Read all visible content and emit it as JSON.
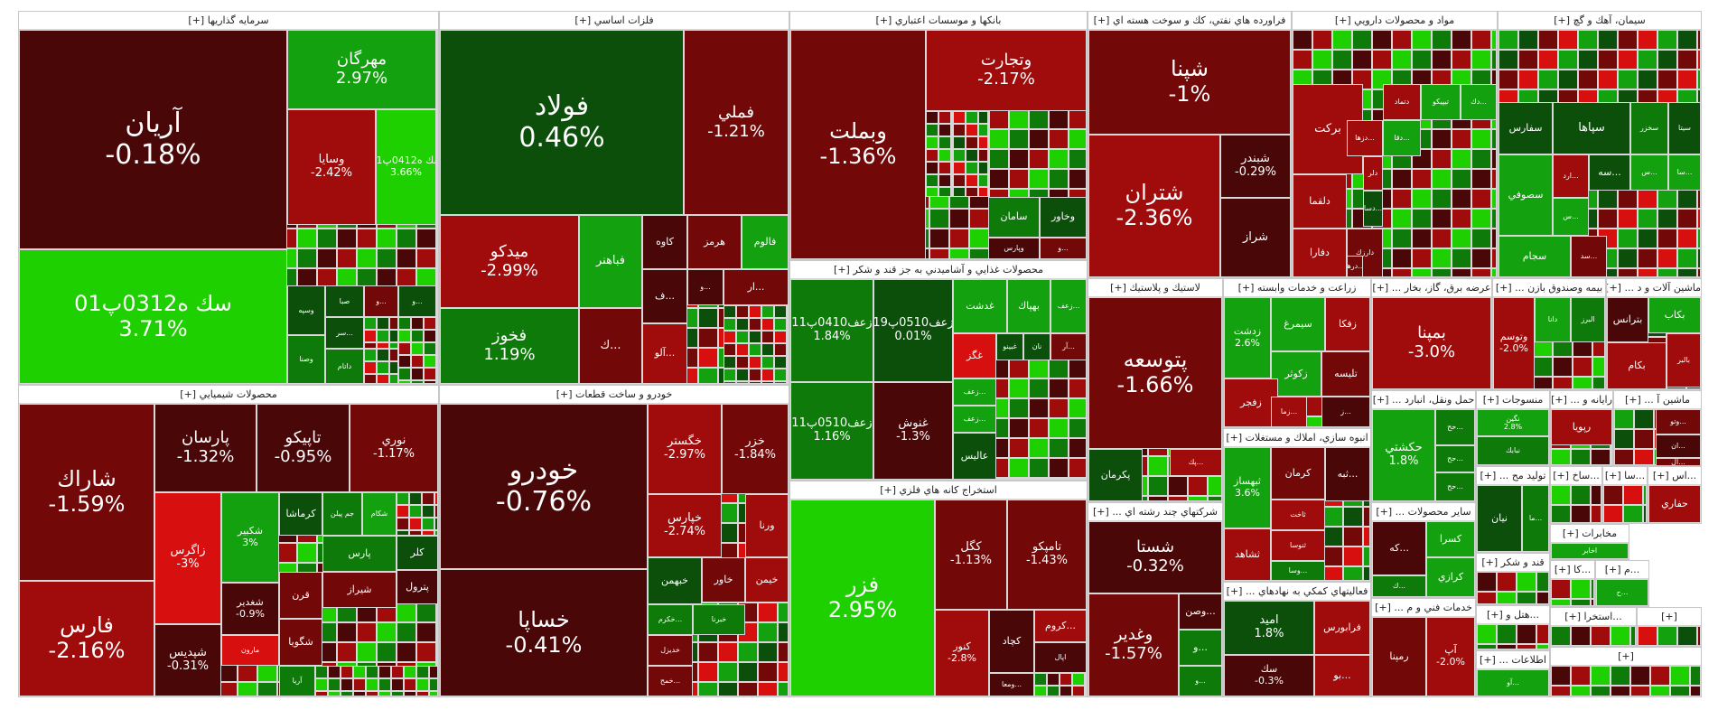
{
  "colors": {
    "pos_hi": "#1fd000",
    "pos_mid": "#14a10f",
    "pos_lo": "#0d7a0a",
    "pos_dk": "#0b4f0b",
    "neg_lo": "#4a0707",
    "neg_mid": "#730808",
    "neg_hi": "#a00b0b",
    "neg_max": "#d80f0f"
  },
  "sectors": [
    {
      "title": "سرمايه گذاريها",
      "plus": "[+]",
      "tiles": [
        {
          "symbol": "آريان",
          "change": "-0.18%"
        },
        {
          "symbol": "سك ه0312پ01",
          "change": "3.71%"
        },
        {
          "symbol": "مهرگان",
          "change": "2.97%"
        },
        {
          "symbol": "وسايا",
          "change": "-2.42%"
        },
        {
          "symbol": "سك ه0412پ01",
          "change": "3.66%"
        },
        {
          "symbol": "وسپه",
          "change": ""
        },
        {
          "symbol": "صبا",
          "change": ""
        },
        {
          "symbol": "وصنا",
          "change": ""
        },
        {
          "symbol": "داتام",
          "change": ""
        },
        {
          "symbol": "...سر",
          "change": ""
        },
        {
          "symbol": "...و",
          "change": ""
        },
        {
          "symbol": "...و",
          "change": ""
        }
      ]
    },
    {
      "title": "فلزات اساسي",
      "plus": "[+]",
      "tiles": [
        {
          "symbol": "فولاد",
          "change": "0.46%"
        },
        {
          "symbol": "فملي",
          "change": "-1.21%"
        },
        {
          "symbol": "ميدكو",
          "change": "-2.99%"
        },
        {
          "symbol": "فخوز",
          "change": "1.19%"
        },
        {
          "symbol": "فباهنر",
          "change": ""
        },
        {
          "symbol": "كاوه",
          "change": ""
        },
        {
          "symbol": "هرمز",
          "change": ""
        },
        {
          "symbol": "فالوم",
          "change": ""
        },
        {
          "symbol": "...آلو",
          "change": ""
        },
        {
          "symbol": "...ف",
          "change": ""
        },
        {
          "symbol": "...ك",
          "change": ""
        },
        {
          "symbol": "...و",
          "change": ""
        },
        {
          "symbol": "...ار",
          "change": ""
        }
      ]
    },
    {
      "title": "بانكها و موسسات اعتباري",
      "plus": "[+]",
      "tiles": [
        {
          "symbol": "وبملت",
          "change": "-1.36%"
        },
        {
          "symbol": "وتجارت",
          "change": "-2.17%"
        },
        {
          "symbol": "سامان",
          "change": ""
        },
        {
          "symbol": "وخاور",
          "change": ""
        },
        {
          "symbol": "وپارس",
          "change": ""
        },
        {
          "symbol": "...و",
          "change": ""
        }
      ]
    },
    {
      "title": "فراورده هاي نفتي، كك و سوخت هسته اي",
      "plus": "[+]",
      "tiles": [
        {
          "symbol": "شپنا",
          "change": "-1%"
        },
        {
          "symbol": "شتران",
          "change": "-2.36%"
        },
        {
          "symbol": "شراز",
          "change": ""
        },
        {
          "symbol": "شبندر",
          "change": "-0.29%"
        }
      ]
    },
    {
      "title": "مواد و محصولات دارويي",
      "plus": "[+]",
      "tiles": [
        {
          "symbol": "بركت",
          "change": ""
        },
        {
          "symbol": "تيپيكو",
          "change": ""
        },
        {
          "symbol": "دتماد",
          "change": ""
        },
        {
          "symbol": "...دزها",
          "change": ""
        },
        {
          "symbol": "دلر",
          "change": ""
        },
        {
          "symbol": "دلقما",
          "change": ""
        },
        {
          "symbol": "...دسا",
          "change": ""
        },
        {
          "symbol": "دارزك",
          "change": ""
        },
        {
          "symbol": "دفارا",
          "change": ""
        },
        {
          "symbol": "...درها",
          "change": ""
        },
        {
          "symbol": "...دك",
          "change": ""
        },
        {
          "symbol": "...دقا",
          "change": ""
        }
      ]
    },
    {
      "title": "سيمان، آهك و گچ",
      "plus": "[+]",
      "tiles": [
        {
          "symbol": "سيتا",
          "change": ""
        },
        {
          "symbol": "سخزر",
          "change": ""
        },
        {
          "symbol": "سپاها",
          "change": ""
        },
        {
          "symbol": "سفارس",
          "change": ""
        },
        {
          "symbol": "...ارد",
          "change": ""
        },
        {
          "symbol": "...سه",
          "change": ""
        },
        {
          "symbol": "...س",
          "change": ""
        },
        {
          "symbol": "...سا",
          "change": ""
        },
        {
          "symbol": "سصوفي",
          "change": ""
        },
        {
          "symbol": "...س",
          "change": ""
        },
        {
          "symbol": "سجام",
          "change": ""
        },
        {
          "symbol": "...سد",
          "change": ""
        }
      ]
    },
    {
      "title": "محصولات شيميايي",
      "plus": "[+]",
      "tiles": [
        {
          "symbol": "شاراك",
          "change": "-1.59%"
        },
        {
          "symbol": "فارس",
          "change": "-2.16%"
        },
        {
          "symbol": "پارسان",
          "change": "-1.32%"
        },
        {
          "symbol": "تاپيكو",
          "change": "-0.95%"
        },
        {
          "symbol": "نوري",
          "change": "-1.17%"
        },
        {
          "symbol": "زاگرس",
          "change": "-3%"
        },
        {
          "symbol": "شكبير",
          "change": "3%"
        },
        {
          "symbol": "شپديس",
          "change": "-0.31%"
        },
        {
          "symbol": "جم پيلن",
          "change": ""
        },
        {
          "symbol": "كرماشا",
          "change": ""
        },
        {
          "symbol": "شكام",
          "change": ""
        },
        {
          "symbol": "كلر",
          "change": ""
        },
        {
          "symbol": "پترول",
          "change": ""
        },
        {
          "symbol": "پارس",
          "change": ""
        },
        {
          "symbol": "شيراز",
          "change": ""
        },
        {
          "symbol": "قرن",
          "change": ""
        },
        {
          "symbol": "مارون",
          "change": ""
        },
        {
          "symbol": "شگويا",
          "change": ""
        },
        {
          "symbol": "آريا",
          "change": ""
        },
        {
          "symbol": "شغدير",
          "change": "-0.9%"
        }
      ]
    },
    {
      "title": "خودرو و ساخت قطعات",
      "plus": "[+]",
      "tiles": [
        {
          "symbol": "خودرو",
          "change": "-0.76%"
        },
        {
          "symbol": "خساپا",
          "change": "-0.41%"
        },
        {
          "symbol": "خگستر",
          "change": "-2.97%"
        },
        {
          "symbol": "خبهمن",
          "change": ""
        },
        {
          "symbol": "خاور",
          "change": ""
        },
        {
          "symbol": "خيمن",
          "change": ""
        },
        {
          "symbol": "ورنا",
          "change": ""
        },
        {
          "symbol": "خپارس",
          "change": "-2.74%"
        },
        {
          "symbol": "خزر",
          "change": "-1.84%"
        },
        {
          "symbol": "...خكرم",
          "change": ""
        },
        {
          "symbol": "خديزل",
          "change": ""
        },
        {
          "symbol": "...خمح",
          "change": ""
        },
        {
          "symbol": "خبرنا",
          "change": ""
        }
      ]
    },
    {
      "title": "محصولات غذايي و آشاميدني به جز قند و شكر",
      "plus": "[+]",
      "tiles": [
        {
          "symbol": "زعف0410پ11",
          "change": "1.84%"
        },
        {
          "symbol": "زعف0510پ19",
          "change": "0.01%"
        },
        {
          "symbol": "زعف0510پ11",
          "change": "1.16%"
        },
        {
          "symbol": "غنوش",
          "change": "-1.3%"
        },
        {
          "symbol": "غدشت",
          "change": ""
        },
        {
          "symbol": "بهپاك",
          "change": ""
        },
        {
          "symbol": "...زعف",
          "change": ""
        },
        {
          "symbol": "غگز",
          "change": ""
        },
        {
          "symbol": "غبينو",
          "change": ""
        },
        {
          "symbol": "نان",
          "change": ""
        },
        {
          "symbol": "...آر",
          "change": ""
        },
        {
          "symbol": "...زعف",
          "change": ""
        },
        {
          "symbol": "...زعف",
          "change": ""
        },
        {
          "symbol": "عاليس",
          "change": ""
        }
      ]
    },
    {
      "title": "استخراج كانه هاي فلزي",
      "plus": "[+]",
      "tiles": [
        {
          "symbol": "فزر",
          "change": "2.95%"
        },
        {
          "symbol": "كگل",
          "change": "-1.13%"
        },
        {
          "symbol": "تامپكو",
          "change": "-1.43%"
        },
        {
          "symbol": "كچاد",
          "change": ""
        },
        {
          "symbol": "...كروم",
          "change": ""
        },
        {
          "symbol": "اپال",
          "change": ""
        },
        {
          "symbol": "...ومعا",
          "change": ""
        },
        {
          "symbol": "كنور",
          "change": "-2.8%"
        }
      ]
    },
    {
      "title": "لاستيك و پلاستيك",
      "plus": "[+]",
      "tiles": [
        {
          "symbol": "پتوسعه",
          "change": "-1.66%"
        },
        {
          "symbol": "پكرمان",
          "change": ""
        },
        {
          "symbol": "...پك",
          "change": ""
        }
      ]
    },
    {
      "title": "شركتهاي چند رشته اي ...",
      "plus": "[+]",
      "tiles": [
        {
          "symbol": "شستا",
          "change": "-0.32%"
        },
        {
          "symbol": "وغدير",
          "change": "-1.57%"
        },
        {
          "symbol": "...وصن",
          "change": ""
        },
        {
          "symbol": "...و",
          "change": ""
        },
        {
          "symbol": "...و",
          "change": ""
        }
      ]
    },
    {
      "title": "زراعت و خدمات وابسته",
      "plus": "[+]",
      "tiles": [
        {
          "symbol": "زفكا",
          "change": ""
        },
        {
          "symbol": "سيمرغ",
          "change": ""
        },
        {
          "symbol": "زكوثر",
          "change": ""
        },
        {
          "symbol": "تليسه",
          "change": ""
        },
        {
          "symbol": "زفجر",
          "change": ""
        },
        {
          "symbol": "...زما",
          "change": ""
        },
        {
          "symbol": "...ز",
          "change": ""
        },
        {
          "symbol": "زدشت",
          "change": "2.6%"
        }
      ]
    },
    {
      "title": "انبوه سازي، املاك و مستغلات",
      "plus": "[+]",
      "tiles": [
        {
          "symbol": "كرمان",
          "change": ""
        },
        {
          "symbol": "...ثبه",
          "change": ""
        },
        {
          "symbol": "ثاخت",
          "change": ""
        },
        {
          "symbol": "ثنوسا",
          "change": ""
        },
        {
          "symbol": "ثشاهد",
          "change": ""
        },
        {
          "symbol": "...وسا",
          "change": ""
        },
        {
          "symbol": "ثبهساز",
          "change": "3.6%"
        }
      ]
    },
    {
      "title": "فعاليتهاي كمكي به نهادهاي ...",
      "plus": "[+]",
      "tiles": [
        {
          "symbol": "فرابورس",
          "change": ""
        },
        {
          "symbol": "...بو",
          "change": ""
        },
        {
          "symbol": "اميد",
          "change": "1.8%"
        },
        {
          "symbol": "سك",
          "change": "-0.3%"
        }
      ]
    },
    {
      "title": "عرضه برق، گاز، بخار ...",
      "plus": "[+]",
      "tiles": [
        {
          "symbol": "...گوا",
          "change": ""
        },
        {
          "symbol": "...شم",
          "change": ""
        },
        {
          "symbol": "بمپنا",
          "change": "-3.0%"
        }
      ]
    },
    {
      "title": "بيمه وصندوق بازن ...",
      "plus": "[+]",
      "tiles": [
        {
          "symbol": "دانا",
          "change": ""
        },
        {
          "symbol": "البرز",
          "change": ""
        },
        {
          "symbol": "وتوسم",
          "change": "-2.0%"
        }
      ]
    },
    {
      "title": "ماشين آلات و د ...",
      "plus": "[+]",
      "tiles": [
        {
          "symbol": "بكاب",
          "change": ""
        },
        {
          "symbol": "بترانس",
          "change": ""
        },
        {
          "symbol": "بالبر",
          "change": ""
        },
        {
          "symbol": "بكام",
          "change": ""
        }
      ]
    },
    {
      "title": "حمل ونقل، انبارد ...",
      "plus": "[+]",
      "tiles": [
        {
          "symbol": "...حح",
          "change": ""
        },
        {
          "symbol": "...حح",
          "change": ""
        },
        {
          "symbol": "...حح",
          "change": ""
        },
        {
          "symbol": "حكشتي",
          "change": "1.8%"
        }
      ]
    },
    {
      "title": "منسوجات",
      "plus": "[+]",
      "tiles": [
        {
          "symbol": "نبابك",
          "change": ""
        },
        {
          "symbol": "نگين",
          "change": "2.8%"
        }
      ]
    },
    {
      "title": "رايانه و ...",
      "plus": "[+]",
      "tiles": [
        {
          "symbol": "رپويا",
          "change": ""
        }
      ]
    },
    {
      "title": "ماشين آ ...",
      "plus": "[+]",
      "tiles": [
        {
          "symbol": "...وتو",
          "change": ""
        },
        {
          "symbol": "...ان",
          "change": ""
        },
        {
          "symbol": "...ال",
          "change": ""
        }
      ]
    },
    {
      "title": "ساير محصولات ...",
      "plus": "[+]",
      "tiles": [
        {
          "symbol": "...كه",
          "change": ""
        },
        {
          "symbol": "كسرا",
          "change": ""
        },
        {
          "symbol": "كرازي",
          "change": ""
        },
        {
          "symbol": "...ك",
          "change": ""
        }
      ]
    },
    {
      "title": "توليد مح ...",
      "plus": "[+]",
      "tiles": [
        {
          "symbol": "نيان",
          "change": ""
        },
        {
          "symbol": "...ما",
          "change": ""
        }
      ]
    },
    {
      "title": "...ساخ",
      "plus": "[+]",
      "tiles": []
    },
    {
      "title": "...سا",
      "plus": "[+]",
      "tiles": []
    },
    {
      "title": "...اس",
      "plus": "[+]",
      "tiles": [
        {
          "symbol": "حفاري",
          "change": ""
        }
      ]
    },
    {
      "title": "خدمات فني و م ...",
      "plus": "[+]",
      "tiles": [
        {
          "symbol": "رمپنا",
          "change": ""
        },
        {
          "symbol": "آپ",
          "change": "-2.0%"
        }
      ]
    },
    {
      "title": "قند و شكر",
      "plus": "[+]",
      "tiles": []
    },
    {
      "title": "مخابرات",
      "plus": "[+]",
      "tiles": [
        {
          "symbol": "اخابر",
          "change": ""
        }
      ]
    },
    {
      "title": "...كا",
      "plus": "[+]",
      "tiles": []
    },
    {
      "title": "...م",
      "plus": "[+]",
      "tiles": [
        {
          "symbol": "...ح",
          "change": ""
        }
      ]
    },
    {
      "title": "...هتل و",
      "plus": "[+]",
      "tiles": []
    },
    {
      "title": "اطلاعات ...",
      "plus": "[+]",
      "tiles": [
        {
          "symbol": "...آو",
          "change": ""
        }
      ]
    },
    {
      "title": "...استخرا",
      "plus": "[+]",
      "tiles": []
    },
    {
      "title": "",
      "plus": "[+]",
      "tiles": []
    },
    {
      "title": "",
      "plus": "[+]",
      "tiles": []
    },
    {
      "title": "",
      "plus": "[+]",
      "tiles": []
    }
  ]
}
